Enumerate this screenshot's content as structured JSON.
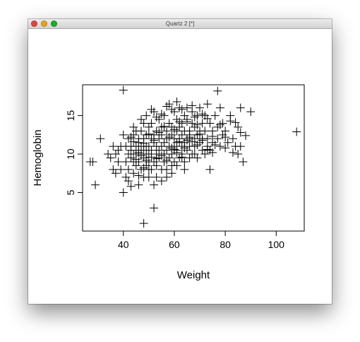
{
  "window": {
    "title": "Quartz 2 [*]"
  },
  "chart_data": {
    "type": "scatter",
    "title": "",
    "xlabel": "Weight",
    "ylabel": "Hemoglobin",
    "xlim": [
      24,
      111
    ],
    "ylim": [
      0,
      19
    ],
    "xticks": [
      40,
      60,
      80,
      100
    ],
    "yticks": [
      5,
      10,
      15
    ],
    "grid": false,
    "legend": "none",
    "marker": "plus",
    "color": "#000000",
    "points": [
      [
        40,
        18.3
      ],
      [
        77,
        18.2
      ],
      [
        108,
        12.9
      ],
      [
        27,
        9
      ],
      [
        28,
        9
      ],
      [
        29,
        6
      ],
      [
        31,
        12
      ],
      [
        34,
        10
      ],
      [
        36,
        8
      ],
      [
        37,
        7.5
      ],
      [
        38,
        10.5
      ],
      [
        40,
        5
      ],
      [
        43,
        5.8
      ],
      [
        46,
        6
      ],
      [
        48,
        7
      ],
      [
        50,
        7
      ],
      [
        52,
        6
      ],
      [
        52,
        3
      ],
      [
        48,
        1
      ],
      [
        87,
        9
      ],
      [
        39,
        11
      ],
      [
        40,
        12.5
      ],
      [
        41,
        11
      ],
      [
        41,
        9
      ],
      [
        42,
        10
      ],
      [
        42,
        12
      ],
      [
        42,
        8
      ],
      [
        43,
        11
      ],
      [
        43,
        9.5
      ],
      [
        43,
        10.5
      ],
      [
        44,
        12.5
      ],
      [
        44,
        9
      ],
      [
        44,
        10
      ],
      [
        45,
        11
      ],
      [
        45,
        8.5
      ],
      [
        45,
        13
      ],
      [
        45,
        10
      ],
      [
        46,
        12
      ],
      [
        46,
        9
      ],
      [
        46,
        10.5
      ],
      [
        46,
        11.5
      ],
      [
        47,
        13
      ],
      [
        47,
        8
      ],
      [
        47,
        10
      ],
      [
        47,
        11
      ],
      [
        48,
        9.5
      ],
      [
        48,
        12
      ],
      [
        48,
        10.5
      ],
      [
        48,
        14
      ],
      [
        49,
        11
      ],
      [
        49,
        8.5
      ],
      [
        49,
        10
      ],
      [
        49,
        12.5
      ],
      [
        50,
        9
      ],
      [
        50,
        13.5
      ],
      [
        50,
        11
      ],
      [
        50,
        10
      ],
      [
        51,
        12
      ],
      [
        51,
        8
      ],
      [
        51,
        10.5
      ],
      [
        51,
        14
      ],
      [
        52,
        11.5
      ],
      [
        52,
        9
      ],
      [
        52,
        12.5
      ],
      [
        52,
        15.5
      ],
      [
        53,
        10
      ],
      [
        53,
        13
      ],
      [
        53,
        11
      ],
      [
        53,
        8.5
      ],
      [
        54,
        12
      ],
      [
        54,
        14.5
      ],
      [
        54,
        10.5
      ],
      [
        54,
        9.5
      ],
      [
        55,
        11
      ],
      [
        55,
        13.5
      ],
      [
        55,
        8
      ],
      [
        55,
        12.5
      ],
      [
        56,
        10
      ],
      [
        56,
        15
      ],
      [
        56,
        11.5
      ],
      [
        56,
        9
      ],
      [
        57,
        12
      ],
      [
        57,
        13
      ],
      [
        57,
        10.5
      ],
      [
        57,
        7
      ],
      [
        58,
        14
      ],
      [
        58,
        11
      ],
      [
        58,
        9.5
      ],
      [
        58,
        16.5
      ],
      [
        59,
        12.5
      ],
      [
        59,
        10
      ],
      [
        59,
        13.5
      ],
      [
        59,
        8.5
      ],
      [
        60,
        11
      ],
      [
        60,
        15.5
      ],
      [
        60,
        12
      ],
      [
        60,
        9
      ],
      [
        61,
        13
      ],
      [
        61,
        10.5
      ],
      [
        61,
        14.5
      ],
      [
        61,
        11.5
      ],
      [
        62,
        12
      ],
      [
        62,
        16
      ],
      [
        62,
        9.5
      ],
      [
        62,
        13.5
      ],
      [
        63,
        11
      ],
      [
        63,
        14
      ],
      [
        63,
        10
      ],
      [
        63,
        12.5
      ],
      [
        64,
        13
      ],
      [
        64,
        15
      ],
      [
        64,
        11.5
      ],
      [
        64,
        8
      ],
      [
        65,
        12
      ],
      [
        65,
        14.5
      ],
      [
        65,
        10.5
      ],
      [
        65,
        16
      ],
      [
        66,
        13
      ],
      [
        66,
        11
      ],
      [
        66,
        12.5
      ],
      [
        67,
        14
      ],
      [
        67,
        10
      ],
      [
        67,
        15.5
      ],
      [
        68,
        12
      ],
      [
        68,
        13.5
      ],
      [
        68,
        11
      ],
      [
        69,
        15
      ],
      [
        69,
        12.5
      ],
      [
        69,
        9.5
      ],
      [
        70,
        13
      ],
      [
        70,
        16
      ],
      [
        70,
        11.5
      ],
      [
        71,
        14
      ],
      [
        71,
        12
      ],
      [
        71,
        10.5
      ],
      [
        72,
        15
      ],
      [
        72,
        13
      ],
      [
        73,
        12
      ],
      [
        73,
        16.5
      ],
      [
        73,
        11
      ],
      [
        74,
        14
      ],
      [
        74,
        8
      ],
      [
        75,
        13
      ],
      [
        75,
        11.5
      ],
      [
        76,
        15
      ],
      [
        77,
        12
      ],
      [
        77,
        13.5
      ],
      [
        78,
        16
      ],
      [
        78,
        11
      ],
      [
        79,
        14
      ],
      [
        79,
        12.5
      ],
      [
        80,
        13
      ],
      [
        81,
        11.5
      ],
      [
        82,
        15
      ],
      [
        83,
        12
      ],
      [
        84,
        11
      ],
      [
        85,
        13.5
      ],
      [
        86,
        16
      ],
      [
        86,
        11
      ],
      [
        88,
        12.4
      ],
      [
        90,
        15.5
      ],
      [
        41,
        7
      ],
      [
        42,
        6.5
      ],
      [
        44,
        7.5
      ],
      [
        46,
        7.2
      ],
      [
        48,
        8.2
      ],
      [
        50,
        8
      ],
      [
        53,
        7
      ],
      [
        55,
        6.5
      ],
      [
        57,
        8
      ],
      [
        59,
        7.5
      ],
      [
        61,
        8.5
      ],
      [
        64,
        9
      ],
      [
        66,
        9.5
      ],
      [
        68,
        10
      ],
      [
        72,
        10
      ],
      [
        74,
        10.5
      ],
      [
        76,
        11.2
      ],
      [
        80,
        10.8
      ],
      [
        83,
        10.2
      ],
      [
        85,
        10
      ],
      [
        38,
        9
      ],
      [
        37,
        10
      ],
      [
        36,
        11
      ],
      [
        39,
        8
      ],
      [
        35,
        9.5
      ],
      [
        44,
        13.5
      ],
      [
        47,
        14.5
      ],
      [
        49,
        15
      ],
      [
        51,
        15.8
      ],
      [
        53,
        14.8
      ],
      [
        55,
        15.2
      ],
      [
        57,
        16.2
      ],
      [
        59,
        15.8
      ],
      [
        61,
        16.8
      ],
      [
        63,
        15.8
      ],
      [
        65,
        14.2
      ],
      [
        67,
        16.3
      ],
      [
        69,
        13.8
      ],
      [
        71,
        15.2
      ],
      [
        73,
        14.6
      ],
      [
        75,
        12.3
      ],
      [
        78,
        13.8
      ],
      [
        80,
        12.2
      ],
      [
        82,
        14.3
      ],
      [
        84,
        14.1
      ],
      [
        86,
        12.8
      ],
      [
        45,
        9.3
      ],
      [
        47,
        9.8
      ],
      [
        49,
        9.2
      ],
      [
        51,
        9.6
      ],
      [
        53,
        9.4
      ],
      [
        55,
        9.8
      ],
      [
        57,
        9.2
      ],
      [
        59,
        10.8
      ],
      [
        61,
        10.2
      ],
      [
        63,
        9.6
      ],
      [
        65,
        11.8
      ],
      [
        67,
        11.6
      ],
      [
        69,
        11.2
      ],
      [
        71,
        11.8
      ],
      [
        73,
        10.6
      ],
      [
        75,
        10.2
      ],
      [
        58,
        12.2
      ],
      [
        60,
        13.2
      ],
      [
        62,
        14.2
      ],
      [
        56,
        13.6
      ],
      [
        54,
        12.8
      ],
      [
        52,
        11.8
      ],
      [
        50,
        12.6
      ],
      [
        48,
        11.4
      ],
      [
        46,
        10.2
      ],
      [
        44,
        11.6
      ],
      [
        43,
        12.2
      ],
      [
        60,
        10.6
      ],
      [
        62,
        11.6
      ],
      [
        64,
        10.8
      ],
      [
        66,
        12.2
      ],
      [
        68,
        14.8
      ],
      [
        70,
        12.6
      ]
    ]
  }
}
